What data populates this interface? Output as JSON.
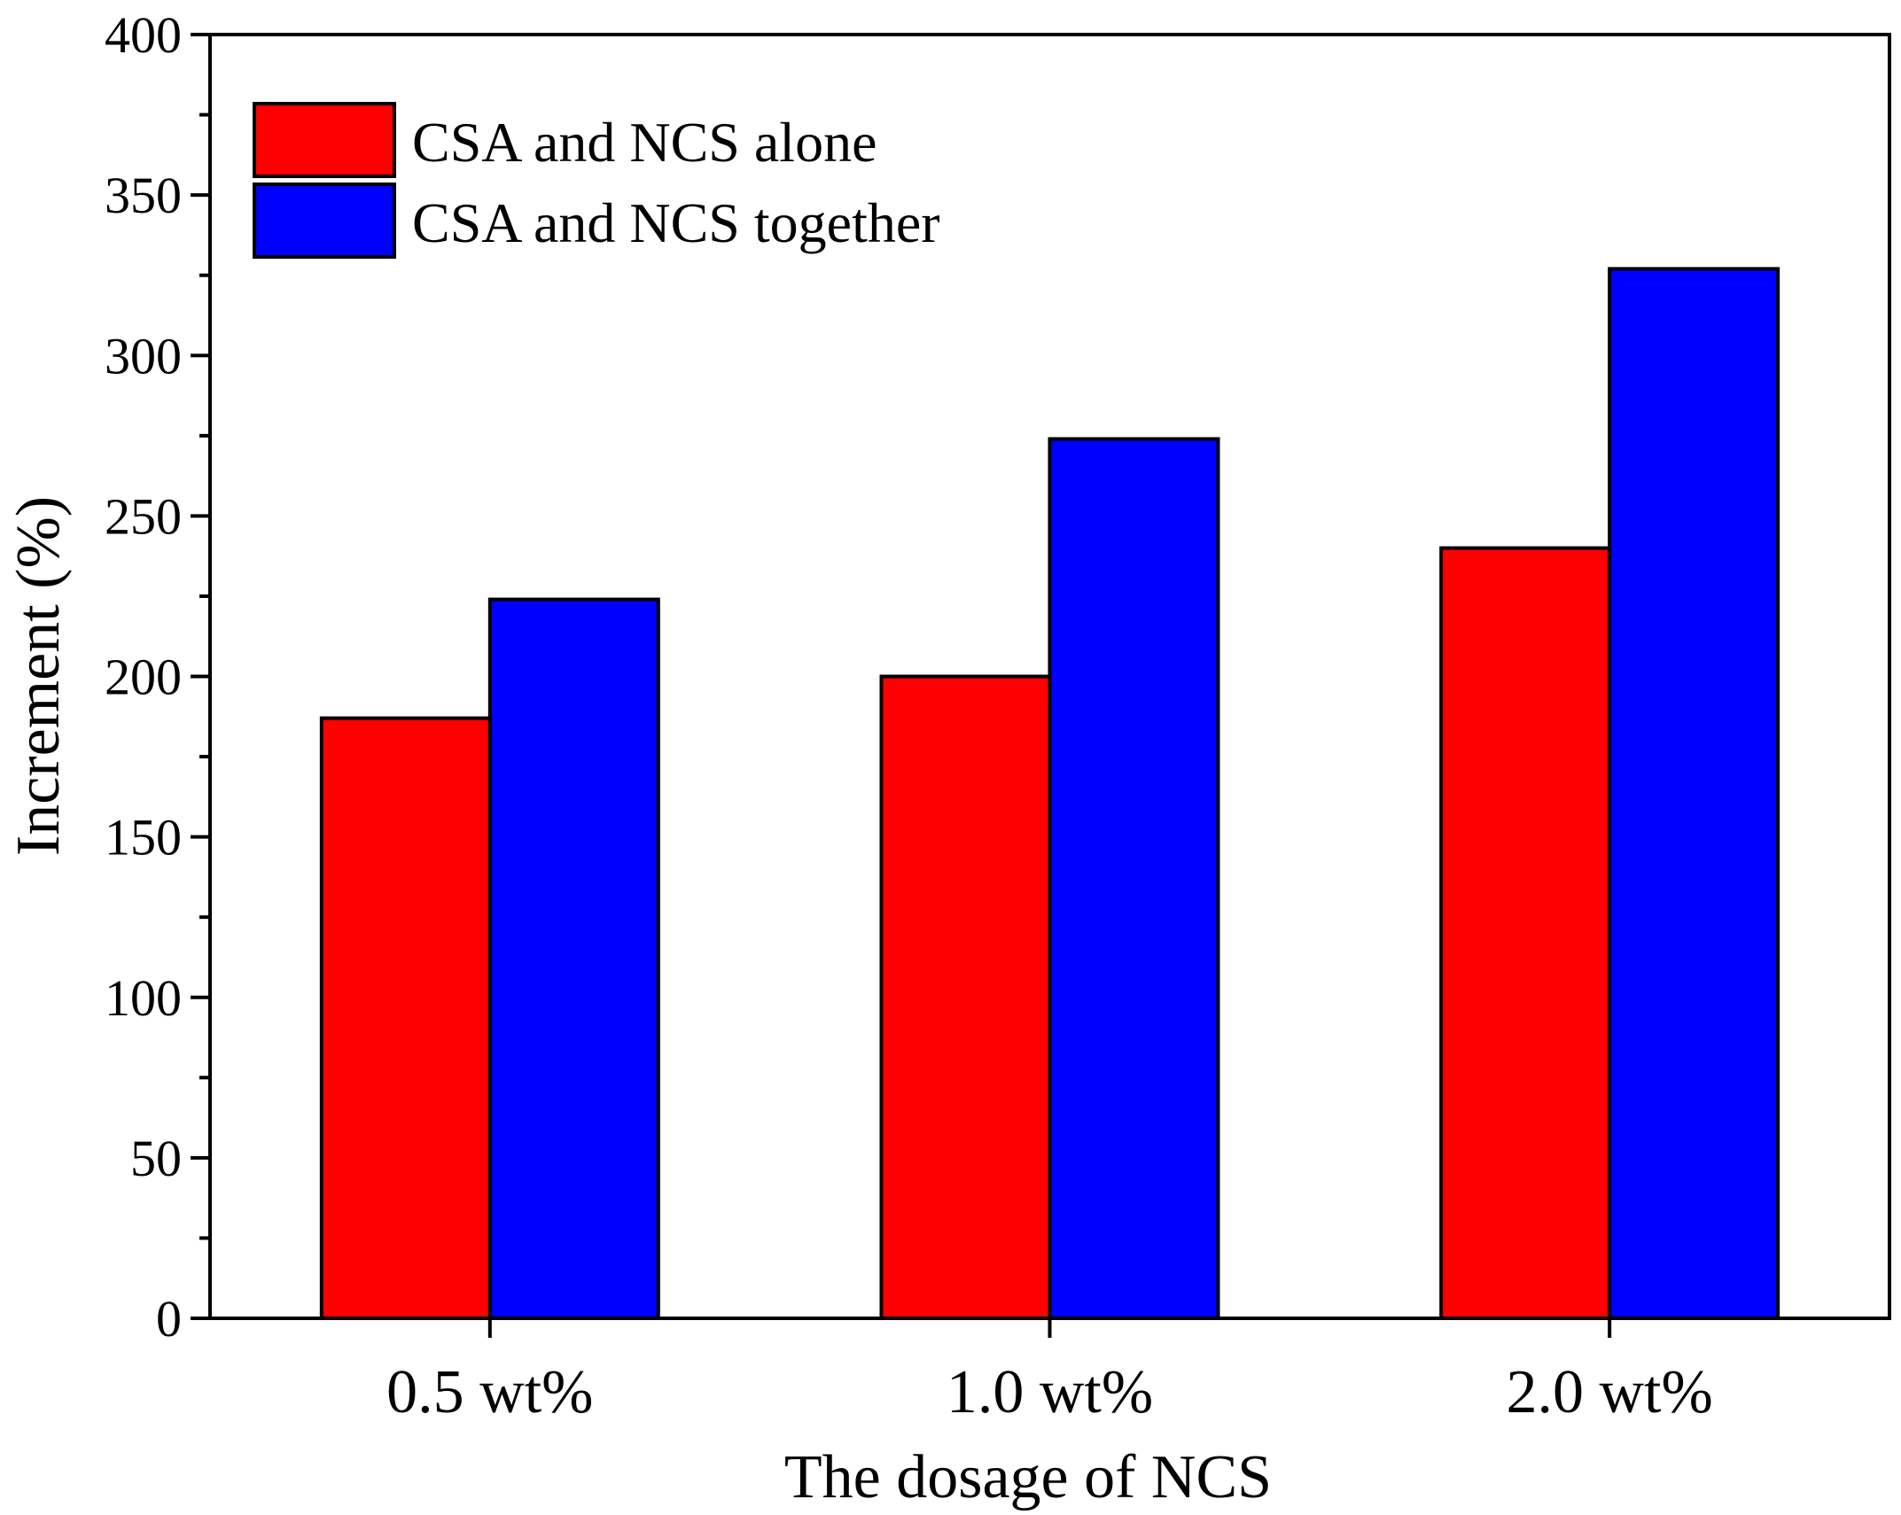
{
  "chart_data": {
    "type": "bar",
    "title": "",
    "xlabel": "The dosage of NCS",
    "ylabel": "Increment (%)",
    "categories": [
      "0.5 wt%",
      "1.0 wt%",
      "2.0 wt%"
    ],
    "series": [
      {
        "name": "CSA and NCS alone",
        "color": "#ff0000",
        "values": [
          187,
          200,
          240
        ]
      },
      {
        "name": "CSA and NCS together",
        "color": "#0000ff",
        "values": [
          224,
          274,
          327
        ]
      }
    ],
    "ylim": [
      0,
      400
    ],
    "yticks": [
      0,
      50,
      100,
      150,
      200,
      250,
      300,
      350,
      400
    ],
    "yminor_step": 25,
    "grid": false,
    "legend_position": "top-left"
  }
}
